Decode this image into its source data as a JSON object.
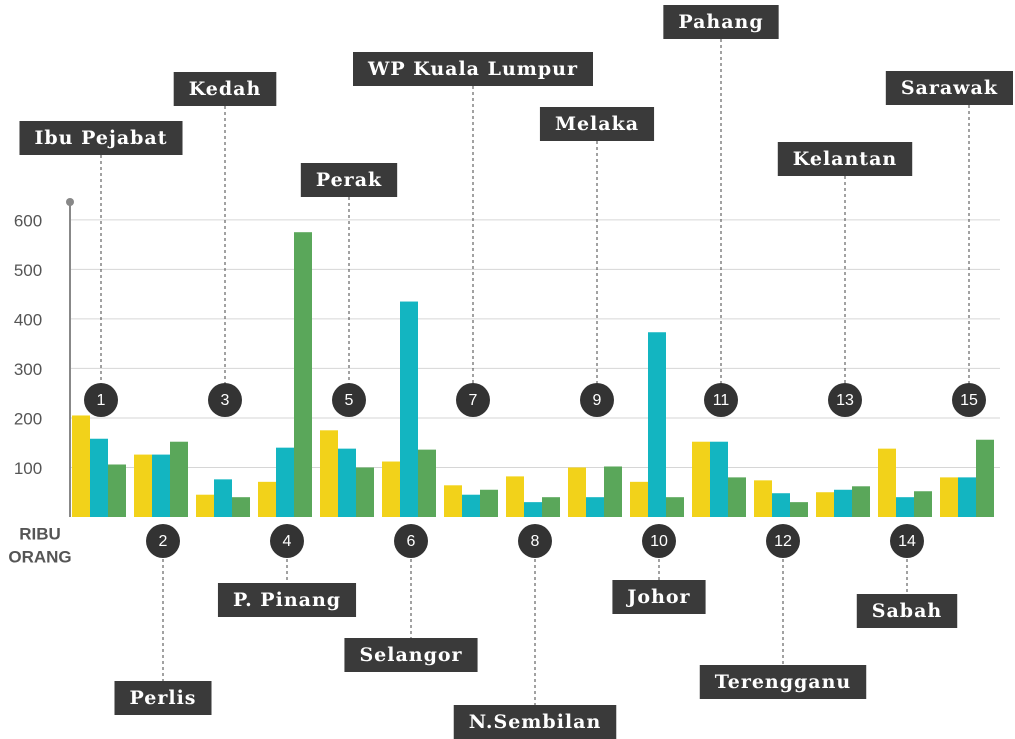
{
  "chart_data": {
    "type": "bar",
    "ylabel": [
      "RIBU",
      "ORANG"
    ],
    "categories": [
      "Ibu Pejabat",
      "Perlis",
      "Kedah",
      "P. Pinang",
      "Perak",
      "Selangor",
      "WP Kuala Lumpur",
      "N.Sembilan",
      "Melaka",
      "Johor",
      "Pahang",
      "Terengganu",
      "Kelantan",
      "Sabah",
      "Sarawak"
    ],
    "badges": [
      "1",
      "2",
      "3",
      "4",
      "5",
      "6",
      "7",
      "8",
      "9",
      "10",
      "11",
      "12",
      "13",
      "14",
      "15"
    ],
    "series": [
      {
        "color": "#f2d21a",
        "values": [
          205,
          126,
          45,
          71,
          175,
          112,
          64,
          82,
          100,
          71,
          152,
          74,
          50,
          138,
          80
        ]
      },
      {
        "color": "#13b5c1",
        "values": [
          158,
          126,
          76,
          140,
          138,
          435,
          45,
          30,
          40,
          373,
          152,
          48,
          55,
          40,
          80
        ]
      },
      {
        "color": "#5aa75a",
        "values": [
          106,
          152,
          40,
          575,
          100,
          136,
          55,
          40,
          102,
          40,
          80,
          30,
          62,
          52,
          156
        ]
      }
    ],
    "ylim": [
      0,
      640
    ],
    "yticks": [
      100,
      200,
      300,
      400,
      500,
      600
    ],
    "grid": true
  }
}
